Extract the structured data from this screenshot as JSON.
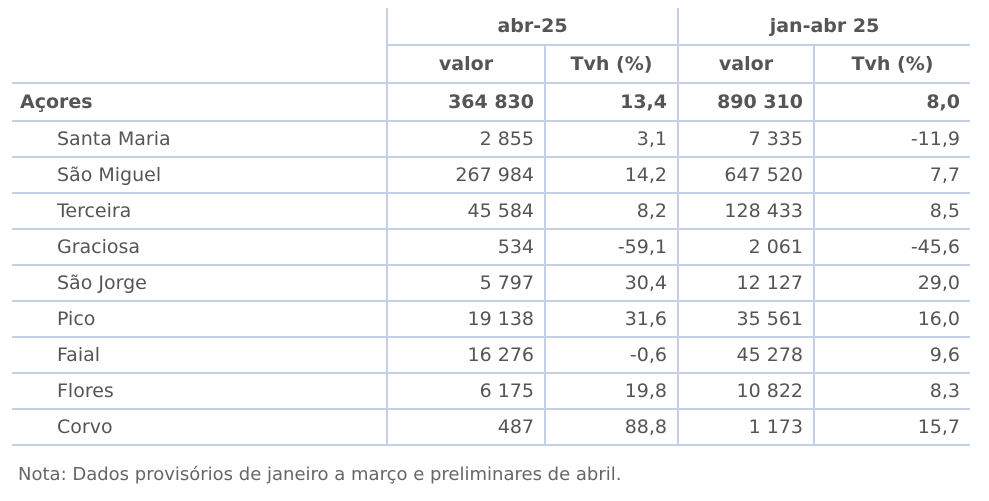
{
  "table": {
    "group_headers": [
      "abr-25",
      "jan-abr 25"
    ],
    "sub_headers": [
      "valor",
      "Tvh (%)",
      "valor",
      "Tvh (%)"
    ],
    "total": {
      "region": "Açores",
      "abr_valor": "364 830",
      "abr_tvh": "13,4",
      "jan_valor": "890 310",
      "jan_tvh": "8,0"
    },
    "rows": [
      {
        "region": "Santa Maria",
        "abr_valor": "2 855",
        "abr_tvh": "3,1",
        "jan_valor": "7 335",
        "jan_tvh": "-11,9"
      },
      {
        "region": "São Miguel",
        "abr_valor": "267 984",
        "abr_tvh": "14,2",
        "jan_valor": "647 520",
        "jan_tvh": "7,7"
      },
      {
        "region": "Terceira",
        "abr_valor": "45 584",
        "abr_tvh": "8,2",
        "jan_valor": "128 433",
        "jan_tvh": "8,5"
      },
      {
        "region": "Graciosa",
        "abr_valor": "534",
        "abr_tvh": "-59,1",
        "jan_valor": "2 061",
        "jan_tvh": "-45,6"
      },
      {
        "region": "São Jorge",
        "abr_valor": "5 797",
        "abr_tvh": "30,4",
        "jan_valor": "12 127",
        "jan_tvh": "29,0"
      },
      {
        "region": "Pico",
        "abr_valor": "19 138",
        "abr_tvh": "31,6",
        "jan_valor": "35 561",
        "jan_tvh": "16,0"
      },
      {
        "region": "Faial",
        "abr_valor": "16 276",
        "abr_tvh": "-0,6",
        "jan_valor": "45 278",
        "jan_tvh": "9,6"
      },
      {
        "region": "Flores",
        "abr_valor": "6 175",
        "abr_tvh": "19,8",
        "jan_valor": "10 822",
        "jan_tvh": "8,3"
      },
      {
        "region": "Corvo",
        "abr_valor": "487",
        "abr_tvh": "88,8",
        "jan_valor": "1 173",
        "jan_tvh": "15,7"
      }
    ]
  },
  "note": "Nota: Dados provisórios de janeiro a março e preliminares de abril.",
  "colors": {
    "rule": "#c3d0e6",
    "text": "#555555"
  }
}
